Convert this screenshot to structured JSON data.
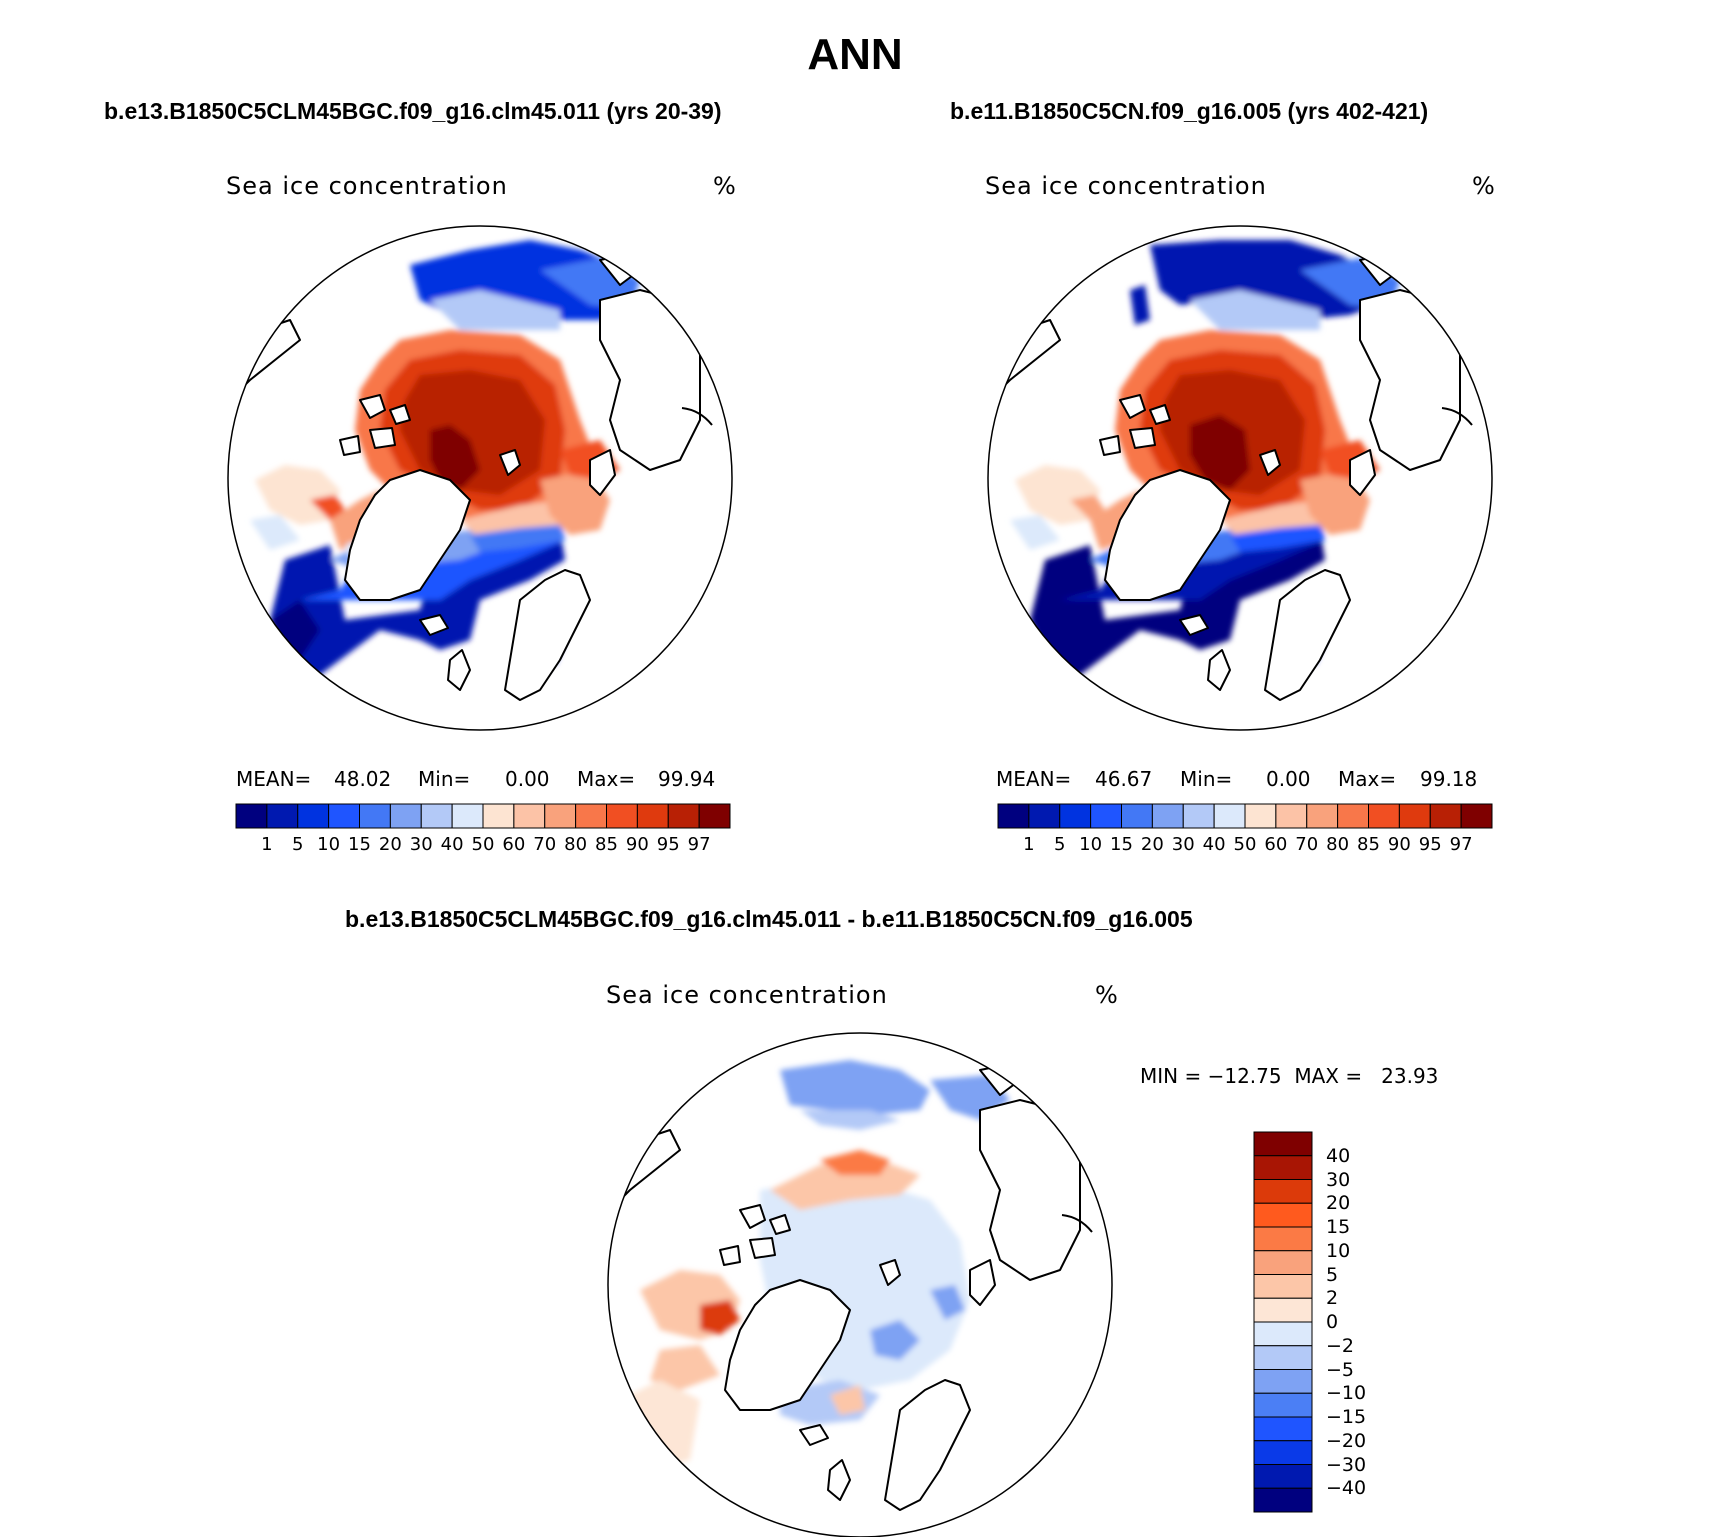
{
  "title": "ANN",
  "panels": {
    "left": {
      "case": "b.e13.B1850C5CLM45BGC.f09_g16.clm45.011 (yrs 20-39)",
      "field": "Sea ice concentration",
      "units": "%",
      "mean_label": "MEAN=",
      "mean": "48.02",
      "min_label": "Min=",
      "min": "0.00",
      "max_label": "Max=",
      "max": "99.94"
    },
    "right": {
      "case": "b.e11.B1850C5CN.f09_g16.005 (yrs 402-421)",
      "field": "Sea ice concentration",
      "units": "%",
      "mean_label": "MEAN=",
      "mean": "46.67",
      "min_label": "Min=",
      "min": "0.00",
      "max_label": "Max=",
      "max": "99.18"
    },
    "diff": {
      "case": "b.e13.B1850C5CLM45BGC.f09_g16.clm45.011 - b.e11.B1850C5CN.f09_g16.005",
      "field": "Sea ice concentration",
      "units": "%",
      "minmax": "MIN = −12.75  MAX =   23.93"
    }
  },
  "colorbar_abs": {
    "colors": [
      "#00007f",
      "#0019b0",
      "#0033e0",
      "#1f55ff",
      "#4378f5",
      "#7ea2f3",
      "#b3c9f7",
      "#dce9fb",
      "#fde4d2",
      "#fcc3a7",
      "#f9a27c",
      "#f8774a",
      "#f14f22",
      "#df3a0e",
      "#b82005",
      "#7f0000"
    ],
    "labels": [
      "1",
      "5",
      "10",
      "15",
      "20",
      "30",
      "40",
      "50",
      "60",
      "70",
      "80",
      "85",
      "90",
      "95",
      "97"
    ]
  },
  "colorbar_diff": {
    "colors": [
      "#7f0000",
      "#a81504",
      "#dc3a0a",
      "#ff5a1e",
      "#fb7a45",
      "#f9a27c",
      "#fcc6a8",
      "#fde6d6",
      "#dce9fb",
      "#b3c9f7",
      "#7ea2f3",
      "#4b7ff5",
      "#1f55ff",
      "#0a3ae8",
      "#0019b0",
      "#00007f"
    ],
    "labels": [
      "40",
      "30",
      "20",
      "15",
      "10",
      "5",
      "2",
      "0",
      "−2",
      "−5",
      "−10",
      "−15",
      "−20",
      "−30",
      "−40"
    ]
  }
}
